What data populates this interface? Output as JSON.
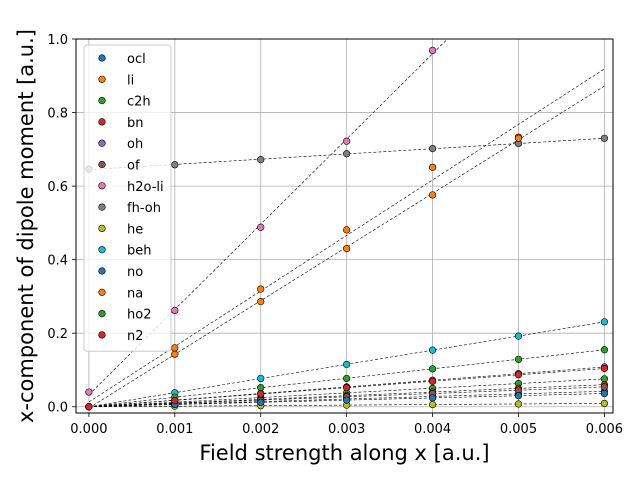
{
  "chart_data": {
    "type": "scatter",
    "title": "",
    "xlabel": "Field strength along x [a.u.]",
    "ylabel": "x-component of dipole moment [a.u.]",
    "xlim": [
      -0.00015,
      0.0061
    ],
    "ylim": [
      -0.017,
      1.0
    ],
    "xticks": [
      0.0,
      0.001,
      0.002,
      0.003,
      0.004,
      0.005,
      0.006
    ],
    "xtick_labels": [
      "0.000",
      "0.001",
      "0.002",
      "0.003",
      "0.004",
      "0.005",
      "0.006"
    ],
    "yticks": [
      0.0,
      0.2,
      0.4,
      0.6,
      0.8,
      1.0
    ],
    "ytick_labels": [
      "0.0",
      "0.2",
      "0.4",
      "0.6",
      "0.8",
      "1.0"
    ],
    "grid": true,
    "legend_position": "top-left",
    "fit_lines": "dashed black linear fit per series",
    "series": [
      {
        "name": "ocl",
        "color": "#1f77b4",
        "x": [
          0,
          0.001,
          0.002,
          0.003,
          0.004,
          0.005,
          0.006
        ],
        "y": [
          0.0,
          0.007,
          0.014,
          0.021,
          0.028,
          0.035,
          0.042
        ]
      },
      {
        "name": "li",
        "color": "#ff7f0e",
        "x": [
          0,
          0.001,
          0.002,
          0.003,
          0.004,
          0.005,
          0.006
        ],
        "y": [
          0.0,
          0.143,
          0.286,
          0.43,
          0.576,
          0.733,
          null
        ]
      },
      {
        "name": "c2h",
        "color": "#2ca02c",
        "x": [
          0,
          0.001,
          0.002,
          0.003,
          0.004,
          0.005,
          0.006
        ],
        "y": [
          0.0,
          0.012,
          0.025,
          0.038,
          0.05,
          0.063,
          0.076
        ]
      },
      {
        "name": "bn",
        "color": "#d62728",
        "x": [
          0,
          0.001,
          0.002,
          0.003,
          0.004,
          0.005,
          0.006
        ],
        "y": [
          0.0,
          0.01,
          0.02,
          0.03,
          0.04,
          0.05,
          0.06
        ]
      },
      {
        "name": "oh",
        "color": "#9467bd",
        "x": [
          0,
          0.001,
          0.002,
          0.003,
          0.004,
          0.005,
          0.006
        ],
        "y": [
          0.0,
          0.018,
          0.036,
          0.054,
          0.072,
          0.09,
          0.108
        ]
      },
      {
        "name": "of",
        "color": "#8c564b",
        "x": [
          0,
          0.001,
          0.002,
          0.003,
          0.004,
          0.005,
          0.006
        ],
        "y": [
          0.0,
          0.009,
          0.018,
          0.027,
          0.036,
          0.045,
          0.054
        ]
      },
      {
        "name": "h2o-li",
        "color": "#e377c2",
        "x": [
          0,
          0.001,
          0.002,
          0.003,
          0.004
        ],
        "y": [
          0.04,
          0.262,
          0.488,
          0.722,
          0.969
        ]
      },
      {
        "name": "fh-oh",
        "color": "#7f7f7f",
        "x": [
          0,
          0.001,
          0.002,
          0.003,
          0.004,
          0.005,
          0.006
        ],
        "y": [
          0.646,
          0.658,
          0.672,
          0.688,
          0.702,
          0.716,
          0.73
        ]
      },
      {
        "name": "he",
        "color": "#bcbd22",
        "x": [
          0,
          0.001,
          0.002,
          0.003,
          0.004,
          0.005,
          0.006
        ],
        "y": [
          0.0,
          0.0015,
          0.003,
          0.0045,
          0.006,
          0.0075,
          0.009
        ]
      },
      {
        "name": "beh",
        "color": "#17becf",
        "x": [
          0,
          0.001,
          0.002,
          0.003,
          0.004,
          0.005,
          0.006
        ],
        "y": [
          0.0,
          0.038,
          0.077,
          0.115,
          0.154,
          0.192,
          0.231
        ]
      },
      {
        "name": "no",
        "color": "#1f77b4",
        "x": [
          0,
          0.001,
          0.002,
          0.003,
          0.004,
          0.005,
          0.006
        ],
        "y": [
          0.0,
          0.006,
          0.012,
          0.018,
          0.024,
          0.03,
          0.036
        ]
      },
      {
        "name": "na",
        "color": "#ff7f0e",
        "x": [
          0,
          0.001,
          0.002,
          0.003,
          0.004,
          0.005,
          0.006
        ],
        "y": [
          0.0,
          0.16,
          0.32,
          0.481,
          0.651,
          0.73,
          null
        ]
      },
      {
        "name": "ho2",
        "color": "#2ca02c",
        "x": [
          0,
          0.001,
          0.002,
          0.003,
          0.004,
          0.005,
          0.006
        ],
        "y": [
          0.0,
          0.026,
          0.052,
          0.077,
          0.103,
          0.129,
          0.155
        ]
      },
      {
        "name": "n2",
        "color": "#d62728",
        "x": [
          0,
          0.001,
          0.002,
          0.003,
          0.004,
          0.005,
          0.006
        ],
        "y": [
          0.0,
          0.017,
          0.035,
          0.052,
          0.069,
          0.087,
          0.104
        ]
      }
    ]
  }
}
